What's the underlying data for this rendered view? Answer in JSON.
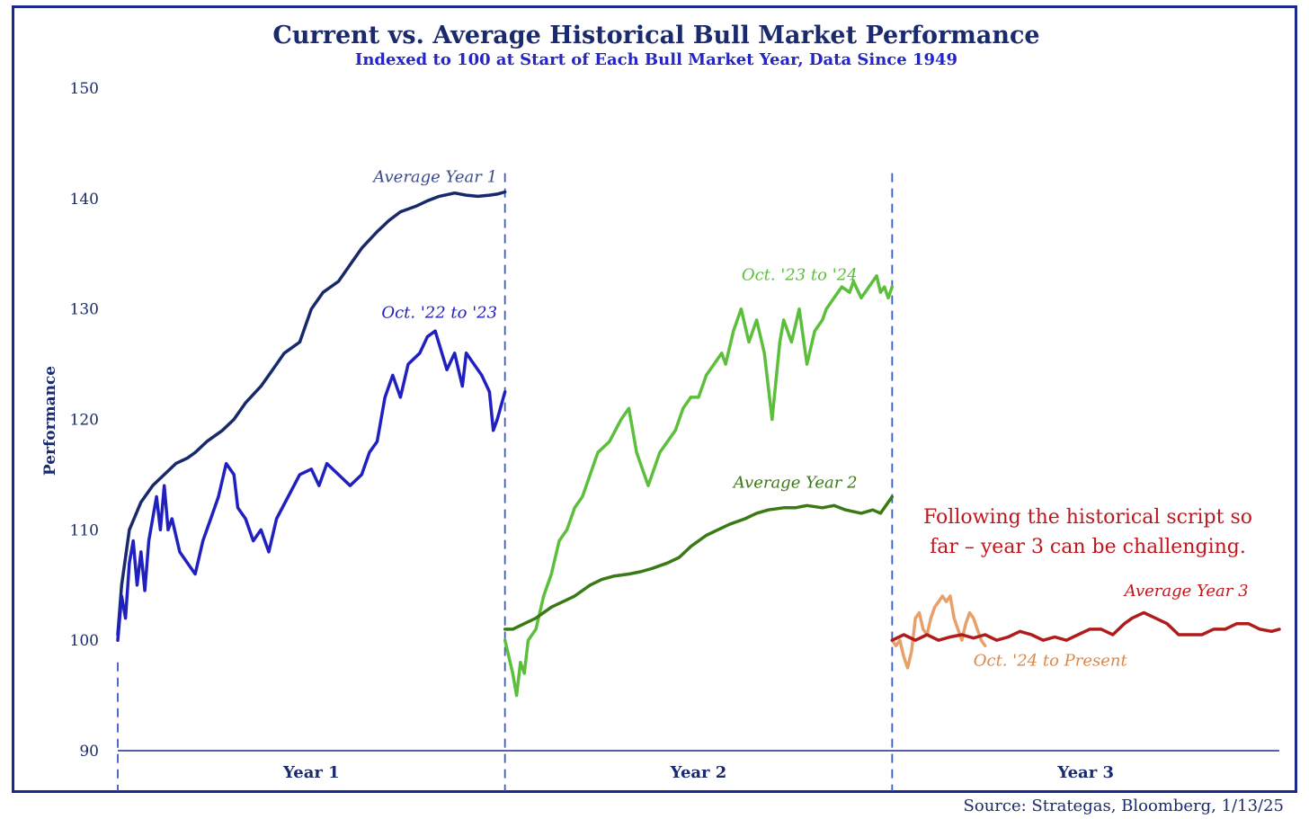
{
  "chart_data": {
    "type": "line",
    "title": "Current vs. Average Historical Bull Market Performance",
    "subtitle": "Indexed to 100 at Start of Each Bull Market Year, Data Since 1949",
    "ylabel": "Performance",
    "ylim": [
      90,
      150
    ],
    "yticks": [
      90,
      100,
      110,
      120,
      130,
      140,
      150
    ],
    "categories": [
      "Year 1",
      "Year 2",
      "Year 3"
    ],
    "xlim": [
      0,
      3
    ],
    "annotation": "Following the historical script so far – year 3 can be challenging.",
    "source": "Source: Strategas, Bloomberg, 1/13/25",
    "series": [
      {
        "name": "Average Year 1",
        "color": "#17296b",
        "width": 3.5,
        "x": [
          0.0,
          0.01,
          0.03,
          0.06,
          0.09,
          0.12,
          0.15,
          0.18,
          0.2,
          0.23,
          0.27,
          0.3,
          0.33,
          0.37,
          0.4,
          0.43,
          0.47,
          0.5,
          0.53,
          0.57,
          0.6,
          0.63,
          0.67,
          0.7,
          0.73,
          0.77,
          0.8,
          0.83,
          0.87,
          0.9,
          0.93,
          0.96,
          0.98,
          1.0
        ],
        "y": [
          100.5,
          105,
          110,
          112.5,
          114,
          115,
          116,
          116.5,
          117,
          118,
          119,
          120,
          121.5,
          123,
          124.5,
          126,
          127,
          130,
          131.5,
          132.5,
          134,
          135.5,
          137,
          138,
          138.8,
          139.3,
          139.8,
          140.2,
          140.5,
          140.3,
          140.2,
          140.3,
          140.4,
          140.6
        ]
      },
      {
        "name": "Oct. '22 to '23",
        "color": "#2020c0",
        "width": 3.5,
        "x": [
          0.0,
          0.01,
          0.02,
          0.03,
          0.04,
          0.05,
          0.06,
          0.07,
          0.08,
          0.09,
          0.1,
          0.11,
          0.12,
          0.13,
          0.14,
          0.16,
          0.18,
          0.2,
          0.22,
          0.24,
          0.26,
          0.28,
          0.3,
          0.31,
          0.33,
          0.35,
          0.37,
          0.39,
          0.41,
          0.44,
          0.47,
          0.5,
          0.52,
          0.54,
          0.57,
          0.6,
          0.63,
          0.65,
          0.67,
          0.69,
          0.71,
          0.73,
          0.75,
          0.78,
          0.8,
          0.82,
          0.85,
          0.87,
          0.89,
          0.9,
          0.92,
          0.94,
          0.96,
          0.97,
          0.98,
          1.0
        ],
        "y": [
          100,
          104,
          102,
          107,
          109,
          105,
          108,
          104.5,
          109,
          111,
          113,
          110,
          114,
          110,
          111,
          108,
          107,
          106,
          109,
          111,
          113,
          116,
          115,
          112,
          111,
          109,
          110,
          108,
          111,
          113,
          115,
          115.5,
          114,
          116,
          115,
          114,
          115,
          117,
          118,
          122,
          124,
          122,
          125,
          126,
          127.5,
          128,
          124.5,
          126,
          123,
          126,
          125,
          124,
          122.5,
          119,
          120,
          122.5
        ]
      },
      {
        "name": "Oct. '23 to '24",
        "color": "#5cbf3c",
        "width": 3.5,
        "x": [
          1.0,
          1.02,
          1.03,
          1.04,
          1.05,
          1.06,
          1.08,
          1.1,
          1.12,
          1.14,
          1.16,
          1.18,
          1.2,
          1.22,
          1.24,
          1.27,
          1.3,
          1.32,
          1.34,
          1.37,
          1.4,
          1.42,
          1.44,
          1.46,
          1.48,
          1.5,
          1.52,
          1.54,
          1.56,
          1.57,
          1.59,
          1.61,
          1.63,
          1.65,
          1.67,
          1.69,
          1.71,
          1.72,
          1.74,
          1.76,
          1.78,
          1.8,
          1.82,
          1.83,
          1.85,
          1.87,
          1.89,
          1.9,
          1.92,
          1.94,
          1.96,
          1.97,
          1.98,
          1.99,
          2.0
        ],
        "y": [
          100,
          97,
          95,
          98,
          97,
          100,
          101,
          104,
          106,
          109,
          110,
          112,
          113,
          115,
          117,
          118,
          120,
          121,
          117,
          114,
          117,
          118,
          119,
          121,
          122,
          122,
          124,
          125,
          126,
          125,
          128,
          130,
          127,
          129,
          126,
          120,
          127,
          129,
          127,
          130,
          125,
          128,
          129,
          130,
          131,
          132,
          131.5,
          132.5,
          131,
          132,
          133,
          131.5,
          132,
          131,
          132
        ]
      },
      {
        "name": "Average Year 2",
        "color": "#3a7a14",
        "width": 3.5,
        "x": [
          1.0,
          1.02,
          1.05,
          1.08,
          1.12,
          1.15,
          1.18,
          1.22,
          1.25,
          1.28,
          1.32,
          1.35,
          1.38,
          1.42,
          1.45,
          1.48,
          1.52,
          1.55,
          1.58,
          1.62,
          1.65,
          1.68,
          1.72,
          1.75,
          1.78,
          1.82,
          1.85,
          1.88,
          1.92,
          1.95,
          1.97,
          1.99,
          2.0
        ],
        "y": [
          101,
          101,
          101.5,
          102,
          103,
          103.5,
          104,
          105,
          105.5,
          105.8,
          106,
          106.2,
          106.5,
          107,
          107.5,
          108.5,
          109.5,
          110,
          110.5,
          111,
          111.5,
          111.8,
          112,
          112,
          112.2,
          112,
          112.2,
          111.8,
          111.5,
          111.8,
          111.5,
          112.5,
          113
        ]
      },
      {
        "name": "Oct. '24 to Present",
        "color": "#e8a06b",
        "width": 3.5,
        "x": [
          2.0,
          2.01,
          2.02,
          2.03,
          2.04,
          2.05,
          2.06,
          2.07,
          2.08,
          2.09,
          2.1,
          2.11,
          2.12,
          2.13,
          2.14,
          2.15,
          2.16,
          2.17,
          2.18,
          2.19,
          2.2,
          2.21,
          2.22,
          2.23,
          2.24
        ],
        "y": [
          100,
          99.5,
          100,
          98.5,
          97.5,
          99,
          102,
          102.5,
          101,
          100.5,
          102,
          103,
          103.5,
          104,
          103.5,
          104,
          102,
          101,
          100,
          101.5,
          102.5,
          102,
          101,
          100,
          99.5
        ]
      },
      {
        "name": "Average Year 3",
        "color": "#b01c1c",
        "width": 3.5,
        "x": [
          2.0,
          2.03,
          2.06,
          2.09,
          2.12,
          2.15,
          2.18,
          2.21,
          2.24,
          2.27,
          2.3,
          2.33,
          2.36,
          2.39,
          2.42,
          2.45,
          2.48,
          2.51,
          2.54,
          2.57,
          2.6,
          2.62,
          2.65,
          2.68,
          2.71,
          2.74,
          2.77,
          2.8,
          2.83,
          2.86,
          2.89,
          2.92,
          2.95,
          2.98,
          3.0
        ],
        "y": [
          100,
          100.5,
          100,
          100.5,
          100,
          100.3,
          100.5,
          100.2,
          100.5,
          100,
          100.3,
          100.8,
          100.5,
          100,
          100.3,
          100,
          100.5,
          101,
          101,
          100.5,
          101.5,
          102,
          102.5,
          102,
          101.5,
          100.5,
          100.5,
          100.5,
          101,
          101,
          101.5,
          101.5,
          101,
          100.8,
          101
        ]
      }
    ],
    "labels": [
      {
        "text": "Average Year 1",
        "x": 0.98,
        "y": 141.5,
        "color": "#3a4a8a",
        "anchor": "end"
      },
      {
        "text": "Oct. '22 to '23",
        "x": 0.98,
        "y": 129.2,
        "color": "#2020c0",
        "anchor": "end"
      },
      {
        "text": "Oct. '23 to '24",
        "x": 1.91,
        "y": 132.6,
        "color": "#5cbf3c",
        "anchor": "end"
      },
      {
        "text": "Average Year 2",
        "x": 1.91,
        "y": 113.8,
        "color": "#3a7a14",
        "anchor": "end"
      },
      {
        "text": "Average Year 3",
        "x": 2.92,
        "y": 104.0,
        "color": "#c0171e",
        "anchor": "end"
      },
      {
        "text": "Oct. '24 to Present",
        "x": 2.21,
        "y": 97.7,
        "color": "#d8884c",
        "anchor": "start"
      }
    ]
  }
}
